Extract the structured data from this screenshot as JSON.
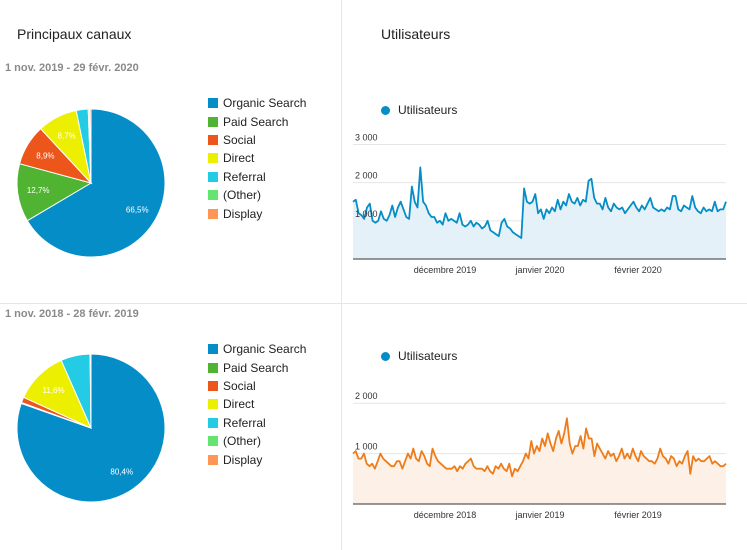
{
  "left_title": "Principaux canaux",
  "right_title": "Utilisateurs",
  "channels": [
    {
      "name": "Organic Search",
      "color": "#058dc7"
    },
    {
      "name": "Paid Search",
      "color": "#50b432"
    },
    {
      "name": "Social",
      "color": "#ed561b"
    },
    {
      "name": "Direct",
      "color": "#edef00"
    },
    {
      "name": "Referral",
      "color": "#24cbe5"
    },
    {
      "name": "(Other)",
      "color": "#64e572"
    },
    {
      "name": "Display",
      "color": "#ff9655"
    }
  ],
  "chart_data": [
    {
      "type": "pie",
      "period": "1 nov. 2019 - 29 févr. 2020",
      "categories": [
        "Organic Search",
        "Paid Search",
        "Social",
        "Direct",
        "Referral",
        "(Other)",
        "Display"
      ],
      "values": [
        66.5,
        12.7,
        8.9,
        8.7,
        2.6,
        0.3,
        0.3
      ],
      "labels": [
        "66,5%",
        "12,7%",
        "8,9%",
        "8,7%",
        "",
        "",
        ""
      ]
    },
    {
      "type": "pie",
      "period": "1 nov. 2018 - 28 févr. 2019",
      "categories": [
        "Organic Search",
        "Paid Search",
        "Social",
        "Direct",
        "Referral",
        "(Other)",
        "Display"
      ],
      "values": [
        80.4,
        0.2,
        1.2,
        11.6,
        6.4,
        0.1,
        0.1
      ],
      "labels": [
        "80,4%",
        "",
        "",
        "11,6%",
        "",
        "",
        ""
      ]
    },
    {
      "type": "area",
      "series": [
        {
          "name": "Utilisateurs",
          "color": "#058dc7",
          "fill": "#e4f1f9",
          "values": [
            1500,
            1550,
            1200,
            1150,
            1050,
            1350,
            1450,
            1000,
            950,
            1000,
            1250,
            1050,
            1000,
            1150,
            1400,
            1100,
            1350,
            1500,
            1300,
            1100,
            1050,
            1900,
            1500,
            1350,
            2400,
            1500,
            1400,
            1200,
            1100,
            1100,
            950,
            1000,
            900,
            1200,
            1000,
            1050,
            1000,
            950,
            1200,
            900,
            850,
            900,
            1000,
            850,
            950,
            900,
            800,
            850,
            1000,
            750,
            700,
            650,
            600,
            950,
            1050,
            850,
            800,
            700,
            650,
            600,
            550,
            1850,
            1500,
            1450,
            1500,
            1700,
            1200,
            1300,
            1050,
            1300,
            1200,
            1350,
            1250,
            1550,
            1300,
            1500,
            1400,
            1700,
            1500,
            1450,
            1600,
            1400,
            1550,
            1500,
            2050,
            2100,
            1600,
            1450,
            1450,
            1300,
            1600,
            1350,
            1250,
            1450,
            1350,
            1300,
            1350,
            1200,
            1300,
            1400,
            1500,
            1350,
            1250,
            1400,
            1300,
            1450,
            1600,
            1350,
            1300,
            1250,
            1300,
            1250,
            1350,
            1300,
            1650,
            1650,
            1300,
            1250,
            1400,
            1350,
            1300,
            1650,
            1350,
            1250,
            1200,
            1350,
            1250,
            1300,
            1250,
            1500,
            1250,
            1300,
            1300,
            1500
          ]
        }
      ],
      "x_labels": [
        "décembre 2019",
        "janvier 2020",
        "février 2020"
      ],
      "y_ticks": [
        "1 000",
        "2 000",
        "3 000"
      ],
      "ylim": [
        0,
        3300
      ]
    },
    {
      "type": "area",
      "series": [
        {
          "name": "Utilisateurs",
          "color": "#ed7d1b",
          "fill": "#fdf0e6",
          "values": [
            1000,
            1050,
            900,
            900,
            1000,
            800,
            750,
            800,
            700,
            850,
            1000,
            900,
            850,
            800,
            750,
            750,
            850,
            850,
            700,
            850,
            1000,
            900,
            1100,
            900,
            850,
            1050,
            950,
            800,
            750,
            1100,
            950,
            850,
            800,
            750,
            700,
            700,
            700,
            750,
            650,
            750,
            700,
            800,
            850,
            900,
            750,
            700,
            700,
            700,
            650,
            750,
            650,
            600,
            750,
            700,
            800,
            700,
            650,
            800,
            550,
            700,
            650,
            750,
            850,
            1000,
            900,
            1250,
            1000,
            1150,
            1050,
            1300,
            1150,
            1400,
            1200,
            1050,
            1300,
            1450,
            1200,
            1400,
            1700,
            1200,
            1000,
            1150,
            1150,
            1350,
            1100,
            1500,
            1300,
            1300,
            950,
            1200,
            1100,
            1000,
            900,
            1050,
            950,
            1000,
            850,
            950,
            1100,
            900,
            1000,
            900,
            1100,
            950,
            850,
            1050,
            950,
            900,
            850,
            850,
            800,
            900,
            1100,
            950,
            900,
            800,
            950,
            900,
            750,
            850,
            800,
            950,
            1050,
            600,
            950,
            850,
            900,
            850,
            850,
            900,
            950,
            800,
            850,
            800,
            750,
            750,
            800
          ]
        }
      ],
      "x_labels": [
        "décembre 2018",
        "janvier 2019",
        "février 2019"
      ],
      "y_ticks": [
        "1 000",
        "2 000"
      ],
      "ylim": [
        0,
        2500
      ]
    }
  ]
}
